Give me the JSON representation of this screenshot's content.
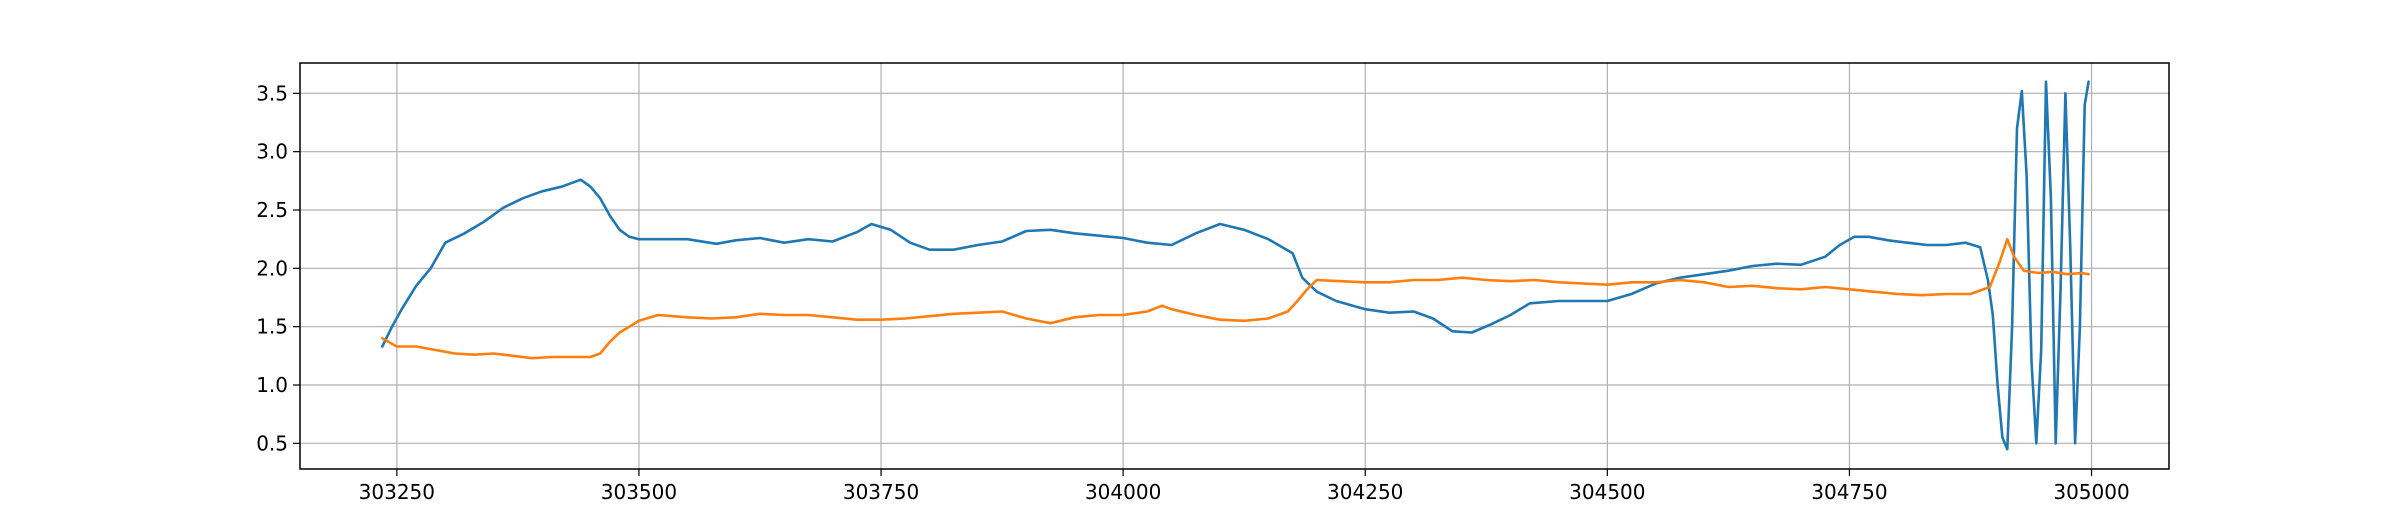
{
  "chart_data": {
    "type": "line",
    "title": "",
    "xlabel": "",
    "ylabel": "",
    "xlim": [
      303150,
      305080
    ],
    "ylim": [
      0.28,
      3.76
    ],
    "x_ticks": [
      303250,
      303500,
      303750,
      304000,
      304250,
      304500,
      304750,
      305000
    ],
    "y_ticks": [
      0.5,
      1.0,
      1.5,
      2.0,
      2.5,
      3.0,
      3.5
    ],
    "x_tick_labels": [
      "303250",
      "303500",
      "303750",
      "304000",
      "304250",
      "304500",
      "304750",
      "305000"
    ],
    "y_tick_labels": [
      "0.5",
      "1.0",
      "1.5",
      "2.0",
      "2.5",
      "3.0",
      "3.5"
    ],
    "grid": true,
    "legend": "none",
    "series": [
      {
        "color": "#1f77b4",
        "x": [
          303235,
          303245,
          303255,
          303270,
          303285,
          303300,
          303320,
          303340,
          303360,
          303380,
          303400,
          303420,
          303440,
          303450,
          303460,
          303470,
          303480,
          303490,
          303500,
          303520,
          303550,
          303580,
          303600,
          303625,
          303650,
          303675,
          303700,
          303725,
          303740,
          303760,
          303780,
          303800,
          303825,
          303850,
          303875,
          303900,
          303925,
          303950,
          303975,
          304000,
          304025,
          304050,
          304075,
          304100,
          304125,
          304150,
          304175,
          304185,
          304200,
          304220,
          304250,
          304275,
          304300,
          304320,
          304340,
          304360,
          304380,
          304400,
          304420,
          304450,
          304475,
          304500,
          304525,
          304550,
          304575,
          304600,
          304625,
          304650,
          304675,
          304700,
          304725,
          304740,
          304755,
          304770,
          304790,
          304810,
          304830,
          304850,
          304870,
          304885,
          304893,
          304898,
          304903,
          304908,
          304913,
          304918,
          304923,
          304928,
          304933,
          304938,
          304943,
          304948,
          304953,
          304958,
          304963,
          304968,
          304973,
          304978,
          304983,
          304988,
          304993,
          304997
        ],
        "y": [
          1.33,
          1.5,
          1.65,
          1.85,
          2.0,
          2.22,
          2.3,
          2.4,
          2.52,
          2.6,
          2.66,
          2.7,
          2.76,
          2.7,
          2.6,
          2.45,
          2.33,
          2.27,
          2.25,
          2.25,
          2.25,
          2.21,
          2.24,
          2.26,
          2.22,
          2.25,
          2.23,
          2.31,
          2.38,
          2.33,
          2.22,
          2.16,
          2.16,
          2.2,
          2.23,
          2.32,
          2.33,
          2.3,
          2.28,
          2.26,
          2.22,
          2.2,
          2.3,
          2.38,
          2.33,
          2.25,
          2.13,
          1.92,
          1.8,
          1.72,
          1.65,
          1.62,
          1.63,
          1.57,
          1.46,
          1.45,
          1.52,
          1.6,
          1.7,
          1.72,
          1.72,
          1.72,
          1.78,
          1.87,
          1.92,
          1.95,
          1.98,
          2.02,
          2.04,
          2.03,
          2.1,
          2.2,
          2.27,
          2.27,
          2.24,
          2.22,
          2.2,
          2.2,
          2.22,
          2.18,
          1.9,
          1.6,
          1.0,
          0.55,
          0.45,
          1.5,
          3.2,
          3.52,
          2.8,
          1.2,
          0.5,
          1.3,
          3.6,
          2.6,
          0.5,
          1.8,
          3.5,
          2.2,
          0.5,
          1.5,
          3.4,
          3.6
        ]
      },
      {
        "color": "#ff7f0e",
        "x": [
          303235,
          303250,
          303270,
          303290,
          303310,
          303330,
          303350,
          303370,
          303390,
          303410,
          303430,
          303450,
          303460,
          303470,
          303480,
          303490,
          303500,
          303520,
          303550,
          303575,
          303600,
          303625,
          303650,
          303675,
          303700,
          303725,
          303750,
          303775,
          303800,
          303825,
          303850,
          303875,
          303900,
          303925,
          303950,
          303975,
          304000,
          304025,
          304040,
          304050,
          304075,
          304100,
          304125,
          304150,
          304170,
          304180,
          304190,
          304200,
          304225,
          304250,
          304275,
          304300,
          304325,
          304350,
          304375,
          304400,
          304425,
          304450,
          304475,
          304500,
          304525,
          304550,
          304575,
          304600,
          304625,
          304650,
          304675,
          304700,
          304725,
          304750,
          304775,
          304800,
          304825,
          304850,
          304875,
          304895,
          304905,
          304913,
          304920,
          304930,
          304945,
          304960,
          304975,
          304990,
          304997
        ],
        "y": [
          1.4,
          1.33,
          1.33,
          1.3,
          1.27,
          1.26,
          1.27,
          1.25,
          1.23,
          1.24,
          1.24,
          1.24,
          1.27,
          1.37,
          1.45,
          1.5,
          1.55,
          1.6,
          1.58,
          1.57,
          1.58,
          1.61,
          1.6,
          1.6,
          1.58,
          1.56,
          1.56,
          1.57,
          1.59,
          1.61,
          1.62,
          1.63,
          1.57,
          1.53,
          1.58,
          1.6,
          1.6,
          1.63,
          1.68,
          1.65,
          1.6,
          1.56,
          1.55,
          1.57,
          1.63,
          1.72,
          1.82,
          1.9,
          1.89,
          1.88,
          1.88,
          1.9,
          1.9,
          1.92,
          1.9,
          1.89,
          1.9,
          1.88,
          1.87,
          1.86,
          1.88,
          1.88,
          1.9,
          1.88,
          1.84,
          1.85,
          1.83,
          1.82,
          1.84,
          1.82,
          1.8,
          1.78,
          1.77,
          1.78,
          1.78,
          1.84,
          2.05,
          2.25,
          2.1,
          1.98,
          1.96,
          1.97,
          1.95,
          1.96,
          1.95
        ]
      }
    ]
  }
}
